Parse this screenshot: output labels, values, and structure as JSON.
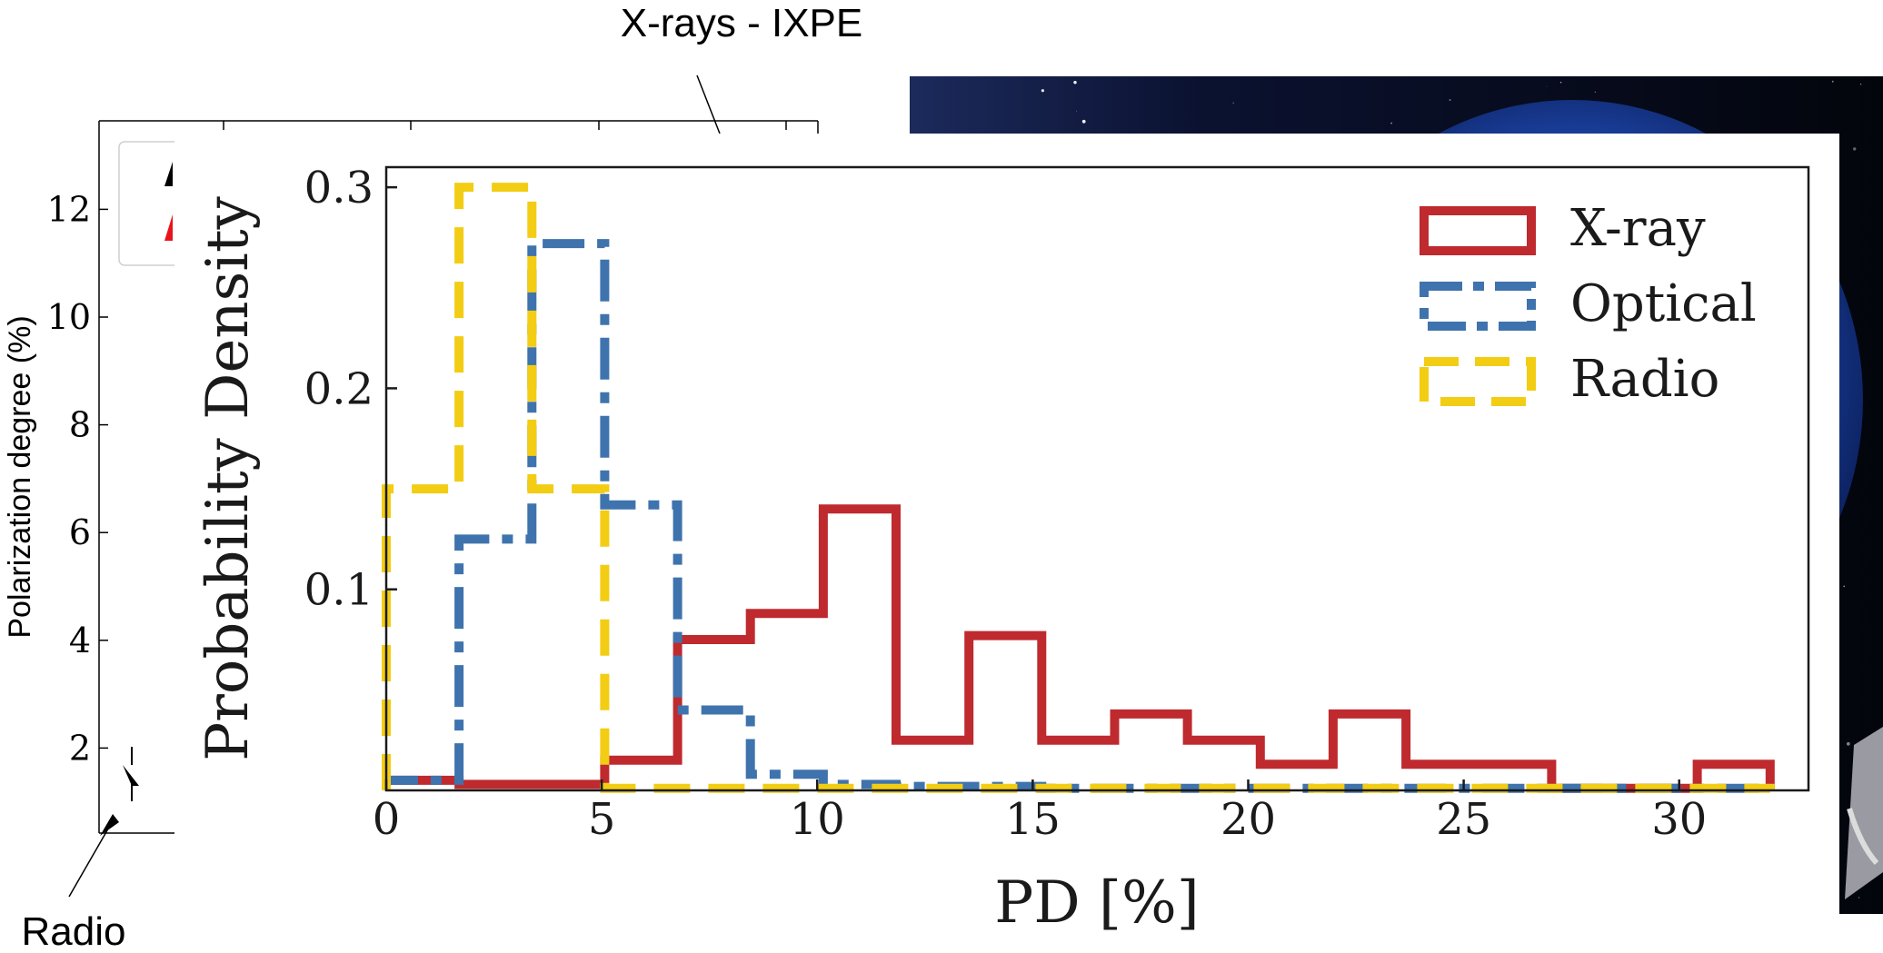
{
  "annotations": {
    "top_label": "X-rays - IXPE",
    "bottom_label": "Radio"
  },
  "background_chart": {
    "ylabel": "Polarization degree (%)",
    "yticks": [
      "2",
      "4",
      "6",
      "8",
      "10",
      "12"
    ],
    "colors": {
      "frame": "#000000",
      "legend_marker_red": "#e8141c"
    }
  },
  "background_image": {
    "description_icon": "space-satellite-image",
    "colors": {
      "space": "#05070f",
      "earth_blue": "#1a3f9c"
    }
  },
  "chart_data": {
    "type": "histogram",
    "xlabel": "PD [%]",
    "ylabel": "Probability Density",
    "xlim": [
      0,
      33
    ],
    "ylim": [
      0,
      0.31
    ],
    "xticks": [
      0,
      5,
      10,
      15,
      20,
      25,
      30
    ],
    "yticks": [
      0.1,
      0.2,
      0.3
    ],
    "legend_position": "top-right",
    "grid": false,
    "series": [
      {
        "name": "X-ray",
        "color": "#bf2a2e",
        "style": "solid",
        "edges": [
          0,
          1.69,
          3.38,
          5.07,
          6.76,
          8.45,
          10.14,
          11.83,
          13.52,
          15.21,
          16.9,
          18.59,
          20.28,
          21.97,
          23.66,
          25.35,
          27.04,
          28.73,
          30.42,
          32.11
        ],
        "values": [
          0.005,
          0.003,
          0.003,
          0.015,
          0.075,
          0.088,
          0.14,
          0.025,
          0.077,
          0.025,
          0.038,
          0.025,
          0.013,
          0.038,
          0.013,
          0.013,
          0.001,
          0.001,
          0.013
        ]
      },
      {
        "name": "Optical",
        "color": "#3f73ad",
        "style": "dashdot",
        "edges": [
          0,
          1.69,
          3.38,
          5.07,
          6.76,
          8.45,
          10.14,
          11.83,
          13.52,
          15.21,
          16.9,
          18.59,
          20.28,
          21.97,
          23.66,
          25.35,
          27.04,
          28.73,
          30.42,
          32.11
        ],
        "values": [
          0.005,
          0.125,
          0.272,
          0.142,
          0.04,
          0.008,
          0.003,
          0.002,
          0.002,
          0.001,
          0.001,
          0.001,
          0.001,
          0.001,
          0.001,
          0.001,
          0.001,
          0.001,
          0.001
        ]
      },
      {
        "name": "Radio",
        "color": "#f2cd14",
        "style": "dashed",
        "edges": [
          0,
          1.69,
          3.38,
          5.07,
          6.76,
          8.45,
          10.14,
          11.83,
          13.52,
          15.21,
          16.9,
          18.59,
          20.28,
          21.97,
          23.66,
          25.35,
          27.04,
          28.73,
          30.42,
          32.11
        ],
        "values": [
          0.15,
          0.3,
          0.15,
          0.001,
          0.001,
          0.001,
          0.001,
          0.001,
          0.001,
          0.001,
          0.001,
          0.001,
          0.001,
          0.001,
          0.001,
          0.001,
          0.001,
          0.001,
          0.001
        ]
      }
    ]
  }
}
